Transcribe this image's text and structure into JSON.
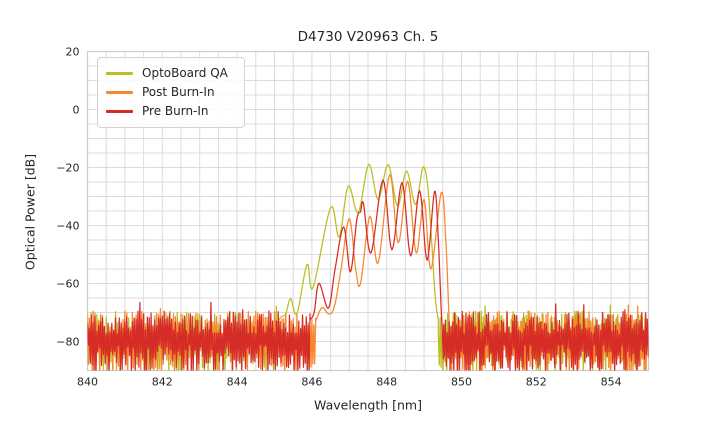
{
  "chart_data": {
    "type": "line",
    "title": "D4730 V20963 Ch. 5",
    "xlabel": "Wavelength [nm]",
    "ylabel": "Optical Power [dB]",
    "xlim": [
      840,
      855
    ],
    "ylim": [
      -90,
      20
    ],
    "x_ticks": [
      840,
      842,
      844,
      846,
      848,
      850,
      852,
      854
    ],
    "y_ticks": [
      20,
      0,
      -20,
      -40,
      -60,
      -80
    ],
    "grid": {
      "on": true,
      "x_step_nm": 0.5,
      "y_step_db": 5,
      "color": "#dcdcdc",
      "spine_color": "#cccccc"
    },
    "legend": {
      "position": "upper-left"
    },
    "noise_floor": {
      "step_nm": 0.025,
      "top_db_range": [
        -69.5,
        -77.5
      ],
      "bottom_db_range": [
        -81,
        -92
      ],
      "clip_db": -90,
      "description": "broadband noise floor between about -70 dB and the -90 dB axis bottom"
    },
    "series": [
      {
        "name": "OptoBoard QA",
        "color": "#bcbd22",
        "noise_regions": [
          [
            840,
            845.05
          ],
          [
            849.38,
            855
          ]
        ],
        "envelope_points": [
          [
            845.05,
            -74.0
          ],
          [
            845.18,
            -71.5
          ],
          [
            845.3,
            -70.5
          ],
          [
            845.43,
            -65.2
          ],
          [
            845.6,
            -70.4
          ],
          [
            845.87,
            -53.4
          ],
          [
            846.03,
            -61.5
          ],
          [
            846.5,
            -33.8
          ],
          [
            846.73,
            -44.0
          ],
          [
            846.97,
            -26.4
          ],
          [
            847.24,
            -35.5
          ],
          [
            847.52,
            -18.9
          ],
          [
            847.77,
            -31.0
          ],
          [
            848.04,
            -19.0
          ],
          [
            848.29,
            -33.3
          ],
          [
            848.53,
            -21.2
          ],
          [
            848.77,
            -32.8
          ],
          [
            848.97,
            -19.9
          ],
          [
            849.1,
            -27.0
          ],
          [
            849.2,
            -45.0
          ],
          [
            849.3,
            -65.0
          ],
          [
            849.38,
            -72.5
          ]
        ]
      },
      {
        "name": "Post Burn-In",
        "color": "#f8872e",
        "noise_regions": [
          [
            840,
            846.1
          ],
          [
            849.71,
            855
          ]
        ],
        "envelope_points": [
          [
            846.1,
            -73.0
          ],
          [
            846.27,
            -68.3
          ],
          [
            846.45,
            -70.5
          ],
          [
            846.6,
            -68.0
          ],
          [
            846.78,
            -55.0
          ],
          [
            847.0,
            -37.6
          ],
          [
            847.17,
            -55.0
          ],
          [
            847.3,
            -60.0
          ],
          [
            847.55,
            -36.8
          ],
          [
            847.77,
            -53.0
          ],
          [
            848.08,
            -22.5
          ],
          [
            848.31,
            -46.0
          ],
          [
            848.56,
            -24.7
          ],
          [
            848.79,
            -49.5
          ],
          [
            849.0,
            -31.0
          ],
          [
            849.18,
            -55.0
          ],
          [
            849.46,
            -28.6
          ],
          [
            849.58,
            -45.0
          ],
          [
            849.66,
            -70.0
          ],
          [
            849.71,
            -86.0
          ]
        ]
      },
      {
        "name": "Pre Burn-In",
        "color": "#d62c28",
        "noise_regions": [
          [
            840,
            845.95
          ],
          [
            849.52,
            855
          ]
        ],
        "envelope_points": [
          [
            845.95,
            -72.5
          ],
          [
            846.06,
            -70.0
          ],
          [
            846.19,
            -59.9
          ],
          [
            846.44,
            -68.5
          ],
          [
            846.62,
            -55.0
          ],
          [
            846.85,
            -40.5
          ],
          [
            847.03,
            -56.0
          ],
          [
            847.2,
            -38.0
          ],
          [
            847.3,
            -35.2
          ],
          [
            847.38,
            -32.5
          ],
          [
            847.58,
            -49.5
          ],
          [
            847.9,
            -24.3
          ],
          [
            848.14,
            -48.4
          ],
          [
            848.41,
            -25.2
          ],
          [
            848.64,
            -50.5
          ],
          [
            848.88,
            -28.0
          ],
          [
            849.08,
            -52.0
          ],
          [
            849.28,
            -28.2
          ],
          [
            849.38,
            -45.0
          ],
          [
            849.46,
            -70.0
          ],
          [
            849.52,
            -86.0
          ]
        ]
      }
    ],
    "draw_order": [
      "OptoBoard QA",
      "Post Burn-In",
      "Pre Burn-In"
    ]
  }
}
